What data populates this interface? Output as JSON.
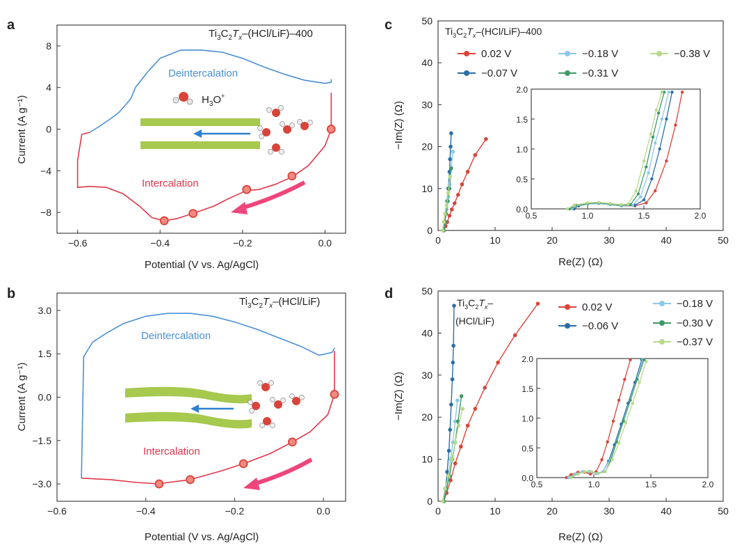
{
  "figure": {
    "panels": {
      "a": {
        "letter": "a",
        "title_main": "Ti",
        "title_sub": "3",
        "title_c": "C",
        "title_sub2": "2",
        "title_tx": "T",
        "title_x": "x",
        "title_rest": "–(HCl/LiF)–400",
        "deint_label": "Deintercalation",
        "int_label": "Intercalation",
        "ion_label": "H",
        "ion_sub": "3",
        "ion_rest": "O",
        "ion_sup": "+"
      },
      "b": {
        "letter": "b",
        "title_rest": "–(HCl/LiF)",
        "deint_label": "Deintercalation",
        "int_label": "Intercalation"
      },
      "c": {
        "letter": "c",
        "title_rest": "–(HCl/LiF)–400"
      },
      "d": {
        "letter": "d",
        "title_line1": "Ti3C2Tx–",
        "title_line2": "(HCl/LiF)"
      }
    },
    "colors": {
      "blue_curve": "#4a8fd6",
      "red_curve": "#e0364a",
      "arrow_pink": "#f0457a",
      "green_bar": "#a6c94e",
      "marker_red": "#d9443a"
    }
  },
  "chart_data": [
    {
      "id": "a",
      "type": "line",
      "xlabel": "Potential (V vs. Ag/AgCl)",
      "ylabel": "Current (A g⁻¹)",
      "xlim": [
        -0.65,
        0.05
      ],
      "ylim": [
        -10,
        10
      ],
      "xticks": [
        -0.6,
        -0.4,
        -0.2,
        0.0
      ],
      "xticklabels": [
        "−0.6",
        "−0.4",
        "−0.2",
        "0.0"
      ],
      "yticks": [
        -8,
        -4,
        0,
        4,
        8
      ],
      "yticklabels": [
        "−8",
        "−4",
        "0",
        "4",
        "8"
      ],
      "series": [
        {
          "role": "deintercalation",
          "color": "#4a8fd6",
          "x": [
            -0.57,
            -0.55,
            -0.52,
            -0.5,
            -0.48,
            -0.47,
            -0.46,
            -0.43,
            -0.4,
            -0.35,
            -0.3,
            -0.25,
            -0.2,
            -0.15,
            -0.1,
            -0.05,
            0.0,
            0.015,
            0.015
          ],
          "y": [
            -0.3,
            0.2,
            1.0,
            1.6,
            2.5,
            3.0,
            4.0,
            5.5,
            6.8,
            7.6,
            7.6,
            7.4,
            6.8,
            6.0,
            5.3,
            4.7,
            4.4,
            4.5,
            4.8
          ]
        },
        {
          "role": "intercalation",
          "color": "#e0364a",
          "x": [
            0.015,
            0.015,
            0.0,
            -0.04,
            -0.08,
            -0.12,
            -0.16,
            -0.19,
            -0.23,
            -0.27,
            -0.32,
            -0.36,
            -0.39,
            -0.42,
            -0.45,
            -0.49,
            -0.53,
            -0.57,
            -0.6,
            -0.6,
            -0.59,
            -0.57
          ],
          "y": [
            3.5,
            0.0,
            -1.6,
            -3.5,
            -4.6,
            -5.3,
            -5.8,
            -5.9,
            -6.6,
            -7.4,
            -8.1,
            -8.6,
            -8.8,
            -8.5,
            -7.4,
            -6.2,
            -5.6,
            -5.5,
            -5.6,
            -3.0,
            -0.5,
            -0.3
          ]
        },
        {
          "role": "markers",
          "color": "#d9443a",
          "x": [
            0.015,
            -0.08,
            -0.19,
            -0.32,
            -0.39
          ],
          "y": [
            0.0,
            -4.5,
            -5.8,
            -8.1,
            -8.8
          ]
        }
      ]
    },
    {
      "id": "b",
      "type": "line",
      "xlabel": "Potential (V vs. Ag/AgCl)",
      "ylabel": "Current (A g⁻¹)",
      "xlim": [
        -0.6,
        0.05
      ],
      "ylim": [
        -3.6,
        3.6
      ],
      "xticks": [
        -0.6,
        -0.4,
        -0.2,
        0.0
      ],
      "xticklabels": [
        "−0.6",
        "−0.4",
        "−0.2",
        "0.0"
      ],
      "yticks": [
        -3.0,
        -1.5,
        0.0,
        1.5,
        3.0
      ],
      "yticklabels": [
        "−3.0",
        "−1.5",
        "0.0",
        "1.5",
        "3.0"
      ],
      "series": [
        {
          "role": "deintercalation",
          "color": "#4a8fd6",
          "x": [
            -0.545,
            -0.54,
            -0.52,
            -0.49,
            -0.45,
            -0.4,
            -0.35,
            -0.3,
            -0.25,
            -0.2,
            -0.15,
            -0.1,
            -0.05,
            -0.01,
            0.02,
            0.025
          ],
          "y": [
            -2.8,
            1.4,
            1.9,
            2.2,
            2.55,
            2.8,
            2.9,
            2.9,
            2.8,
            2.6,
            2.35,
            2.05,
            1.75,
            1.45,
            1.55,
            1.7
          ]
        },
        {
          "role": "intercalation",
          "color": "#e0364a",
          "x": [
            0.025,
            0.025,
            0.01,
            -0.03,
            -0.07,
            -0.12,
            -0.18,
            -0.23,
            -0.3,
            -0.35,
            -0.37,
            -0.42,
            -0.48,
            -0.545
          ],
          "y": [
            1.6,
            0.1,
            -0.6,
            -1.2,
            -1.55,
            -1.95,
            -2.3,
            -2.55,
            -2.85,
            -2.95,
            -3.0,
            -2.95,
            -2.85,
            -2.8
          ]
        },
        {
          "role": "markers",
          "color": "#d9443a",
          "x": [
            0.025,
            -0.07,
            -0.18,
            -0.3,
            -0.37
          ],
          "y": [
            0.1,
            -1.55,
            -2.3,
            -2.85,
            -3.0
          ]
        }
      ]
    },
    {
      "id": "c",
      "type": "scatter",
      "xlabel": "Re(Z) (Ω)",
      "ylabel": "−Im(Z) (Ω)",
      "xlim": [
        0,
        50
      ],
      "ylim": [
        0,
        50
      ],
      "xticks": [
        0,
        10,
        20,
        30,
        40,
        50
      ],
      "yticks": [
        0,
        10,
        20,
        30,
        40,
        50
      ],
      "legend": [
        {
          "name": "0.02 V",
          "color": "#d9443a"
        },
        {
          "name": "−0.07 V",
          "color": "#2a6ea6"
        },
        {
          "name": "−0.18 V",
          "color": "#8cc8e8"
        },
        {
          "name": "−0.31 V",
          "color": "#3f9a6a"
        },
        {
          "name": "−0.38 V",
          "color": "#b8d98a"
        }
      ],
      "series": [
        {
          "name": "0.02 V",
          "color": "#d9443a",
          "x": [
            1.0,
            1.3,
            1.6,
            2.0,
            2.4,
            2.9,
            3.5,
            4.2,
            5.2,
            6.5,
            8.4
          ],
          "y": [
            0,
            1,
            2,
            3.5,
            5,
            6.5,
            8.5,
            11,
            14,
            18,
            21.8
          ]
        },
        {
          "name": "−0.07 V",
          "color": "#2a6ea6",
          "x": [
            1.0,
            1.2,
            1.4,
            1.6,
            1.8,
            2.0,
            2.1,
            2.2,
            2.3
          ],
          "y": [
            0,
            2,
            4,
            7,
            10,
            14,
            17,
            20,
            23.2
          ]
        },
        {
          "name": "−0.18 V",
          "color": "#8cc8e8",
          "x": [
            1.0,
            1.2,
            1.5,
            1.8,
            2.0,
            2.3,
            2.6
          ],
          "y": [
            0,
            2,
            5,
            8,
            11,
            15,
            18.8
          ]
        },
        {
          "name": "−0.31 V",
          "color": "#3f9a6a",
          "x": [
            1.0,
            1.2,
            1.4,
            1.7,
            2.0,
            2.3
          ],
          "y": [
            0,
            2,
            4,
            7,
            10,
            14.8
          ]
        },
        {
          "name": "−0.38 V",
          "color": "#b8d98a",
          "x": [
            0.8,
            1.0,
            1.2,
            1.5,
            1.8,
            2.1
          ],
          "y": [
            0,
            2,
            4,
            6,
            9,
            12.8
          ]
        }
      ],
      "inset": {
        "xlim": [
          0.5,
          2.0
        ],
        "ylim": [
          0,
          2.0
        ],
        "xticks": [
          0.5,
          1.0,
          1.5,
          2.0
        ],
        "yticks": [
          0.0,
          0.5,
          1.0,
          1.5,
          2.0
        ],
        "series": [
          {
            "color": "#d9443a",
            "x": [
              0.88,
              0.92,
              1.0,
              1.1,
              1.2,
              1.3,
              1.42,
              1.52,
              1.6,
              1.7,
              1.78,
              1.84
            ],
            "y": [
              0,
              0.05,
              0.08,
              0.09,
              0.07,
              0.05,
              0.05,
              0.1,
              0.3,
              0.8,
              1.4,
              1.95
            ]
          },
          {
            "color": "#2a6ea6",
            "x": [
              0.88,
              0.92,
              1.0,
              1.1,
              1.2,
              1.3,
              1.42,
              1.5,
              1.57,
              1.64,
              1.7,
              1.75
            ],
            "y": [
              0,
              0.05,
              0.08,
              0.09,
              0.07,
              0.05,
              0.06,
              0.15,
              0.5,
              1.0,
              1.5,
              1.95
            ]
          },
          {
            "color": "#8cc8e8",
            "x": [
              0.86,
              0.9,
              1.0,
              1.1,
              1.2,
              1.3,
              1.4,
              1.47,
              1.54,
              1.6,
              1.66,
              1.72
            ],
            "y": [
              0,
              0.05,
              0.08,
              0.09,
              0.07,
              0.05,
              0.06,
              0.2,
              0.6,
              1.1,
              1.5,
              1.95
            ]
          },
          {
            "color": "#3f9a6a",
            "x": [
              0.84,
              0.9,
              1.0,
              1.1,
              1.2,
              1.3,
              1.38,
              1.45,
              1.52,
              1.58,
              1.63,
              1.68
            ],
            "y": [
              0,
              0.06,
              0.09,
              0.1,
              0.08,
              0.06,
              0.07,
              0.25,
              0.7,
              1.2,
              1.6,
              1.95
            ]
          },
          {
            "color": "#b8d98a",
            "x": [
              0.82,
              0.88,
              1.0,
              1.1,
              1.2,
              1.3,
              1.36,
              1.43,
              1.5,
              1.56,
              1.61,
              1.66
            ],
            "y": [
              0,
              0.06,
              0.1,
              0.11,
              0.09,
              0.07,
              0.08,
              0.3,
              0.8,
              1.25,
              1.65,
              1.95
            ]
          }
        ]
      }
    },
    {
      "id": "d",
      "type": "scatter",
      "xlabel": "Re(Z) (Ω)",
      "ylabel": "−Im(Z) (Ω)",
      "xlim": [
        0,
        50
      ],
      "ylim": [
        0,
        50
      ],
      "xticks": [
        0,
        10,
        20,
        30,
        40,
        50
      ],
      "yticks": [
        0,
        10,
        20,
        30,
        40,
        50
      ],
      "legend": [
        {
          "name": "0.02 V",
          "color": "#d9443a"
        },
        {
          "name": "−0.06 V",
          "color": "#2a6ea6"
        },
        {
          "name": "−0.18 V",
          "color": "#8cc8e8"
        },
        {
          "name": "−0.30 V",
          "color": "#3f9a6a"
        },
        {
          "name": "−0.37 V",
          "color": "#b8d98a"
        }
      ],
      "series": [
        {
          "name": "0.02 V",
          "color": "#d9443a",
          "x": [
            1.0,
            1.5,
            2.2,
            3.0,
            4.0,
            5.2,
            6.5,
            8.2,
            10.5,
            13.5,
            17.5
          ],
          "y": [
            0,
            2,
            5,
            9,
            13,
            18,
            22,
            27,
            33,
            39.5,
            47
          ]
        },
        {
          "name": "−0.06 V",
          "color": "#2a6ea6",
          "x": [
            1.0,
            1.3,
            1.6,
            1.9,
            2.1,
            2.3,
            2.5,
            2.6,
            2.7,
            2.8
          ],
          "y": [
            0,
            3,
            7,
            12,
            17,
            23,
            29,
            33,
            37,
            46.5
          ]
        },
        {
          "name": "−0.18 V",
          "color": "#8cc8e8",
          "x": [
            1.0,
            1.4,
            1.8,
            2.2,
            2.6,
            3.0,
            3.4
          ],
          "y": [
            0,
            3,
            6,
            10,
            14,
            19,
            24
          ]
        },
        {
          "name": "−0.30 V",
          "color": "#3f9a6a",
          "x": [
            1.0,
            1.5,
            2.0,
            2.5,
            3.0,
            3.5,
            4.1
          ],
          "y": [
            0,
            3,
            6,
            10,
            14,
            19,
            25
          ]
        },
        {
          "name": "−0.37 V",
          "color": "#b8d98a",
          "x": [
            0.8,
            1.2,
            1.8,
            2.4,
            3.0,
            3.6,
            4.3
          ],
          "y": [
            0,
            3,
            6,
            10,
            14,
            18,
            22
          ]
        }
      ],
      "inset": {
        "xlim": [
          0.5,
          2.0
        ],
        "ylim": [
          0,
          2.0
        ],
        "xticks": [
          0.5,
          1.0,
          1.5,
          2.0
        ],
        "yticks": [
          0.0,
          0.5,
          1.0,
          1.5,
          2.0
        ],
        "series": [
          {
            "color": "#d9443a",
            "x": [
              0.76,
              0.8,
              0.86,
              0.92,
              0.97,
              1.02,
              1.07,
              1.12,
              1.17,
              1.22,
              1.27,
              1.32
            ],
            "y": [
              0,
              0.05,
              0.09,
              0.09,
              0.06,
              0.1,
              0.3,
              0.6,
              0.95,
              1.3,
              1.65,
              1.98
            ]
          },
          {
            "color": "#2a6ea6",
            "x": [
              0.78,
              0.84,
              0.9,
              0.96,
              1.02,
              1.08,
              1.13,
              1.18,
              1.24,
              1.3,
              1.36,
              1.42
            ],
            "y": [
              0,
              0.06,
              0.1,
              0.1,
              0.07,
              0.1,
              0.28,
              0.55,
              0.9,
              1.25,
              1.6,
              1.98
            ]
          },
          {
            "color": "#8cc8e8",
            "x": [
              0.78,
              0.84,
              0.9,
              0.96,
              1.02,
              1.08,
              1.14,
              1.2,
              1.26,
              1.32,
              1.38,
              1.43
            ],
            "y": [
              0,
              0.06,
              0.1,
              0.1,
              0.07,
              0.1,
              0.3,
              0.6,
              0.95,
              1.3,
              1.65,
              1.98
            ]
          },
          {
            "color": "#3f9a6a",
            "x": [
              0.8,
              0.86,
              0.92,
              0.98,
              1.04,
              1.1,
              1.15,
              1.2,
              1.26,
              1.32,
              1.38,
              1.44
            ],
            "y": [
              0,
              0.06,
              0.1,
              0.1,
              0.07,
              0.1,
              0.3,
              0.6,
              0.95,
              1.3,
              1.65,
              1.98
            ]
          },
          {
            "color": "#b8d98a",
            "x": [
              0.8,
              0.86,
              0.92,
              0.98,
              1.04,
              1.1,
              1.16,
              1.22,
              1.28,
              1.34,
              1.4,
              1.46
            ],
            "y": [
              0,
              0.06,
              0.1,
              0.1,
              0.07,
              0.1,
              0.3,
              0.58,
              0.92,
              1.25,
              1.6,
              1.95
            ]
          }
        ]
      }
    }
  ]
}
